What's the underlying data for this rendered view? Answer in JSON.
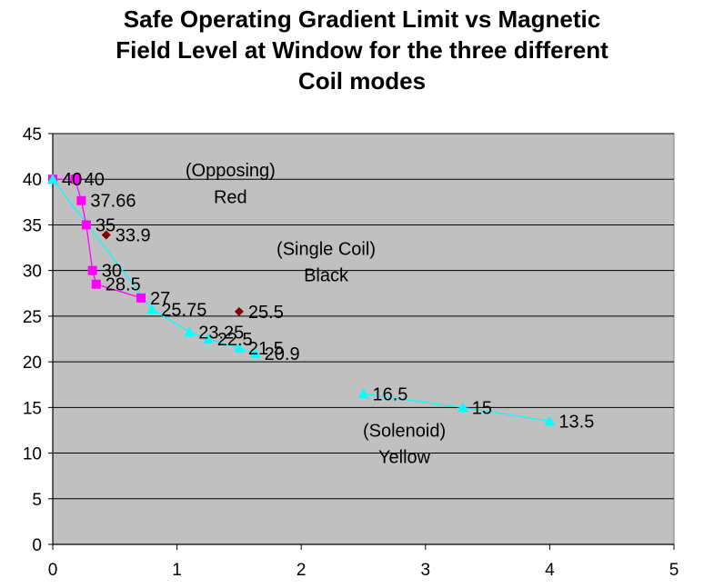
{
  "chart_data": {
    "type": "scatter",
    "title_lines": [
      "Safe Operating Gradient Limit vs  Magnetic",
      "Field Level at Window for the three different",
      "Coil modes"
    ],
    "xlabel": "",
    "ylabel": "",
    "xlim": [
      0,
      5
    ],
    "ylim": [
      0,
      45
    ],
    "x_ticks": [
      0,
      1,
      2,
      3,
      4,
      5
    ],
    "y_ticks": [
      0,
      5,
      10,
      15,
      20,
      25,
      30,
      35,
      40,
      45
    ],
    "grid": "horizontal",
    "plot_background": "#c0c0c0",
    "legend": "none",
    "series": [
      {
        "marker": "square",
        "color": "#ff00ff",
        "connected": true,
        "points": [
          {
            "x": 0.0,
            "y": 40,
            "label": "40"
          },
          {
            "x": 0.18,
            "y": 40,
            "label": "40"
          },
          {
            "x": 0.23,
            "y": 37.66,
            "label": "37.66"
          },
          {
            "x": 0.27,
            "y": 35,
            "label": "35"
          },
          {
            "x": 0.32,
            "y": 30,
            "label": "30"
          },
          {
            "x": 0.35,
            "y": 28.5,
            "label": "28.5"
          },
          {
            "x": 0.71,
            "y": 27,
            "label": "27"
          }
        ]
      },
      {
        "marker": "diamond",
        "color": "#7f0000",
        "connected": false,
        "points": [
          {
            "x": 0.43,
            "y": 33.9,
            "label": "33.9"
          },
          {
            "x": 1.5,
            "y": 25.5,
            "label": "25.5"
          }
        ]
      },
      {
        "marker": "triangle",
        "color": "#00ffff",
        "connected": true,
        "points": [
          {
            "x": 0.0,
            "y": 40,
            "label": "40"
          },
          {
            "x": 0.8,
            "y": 25.75,
            "label": "25.75"
          },
          {
            "x": 1.1,
            "y": 23.25,
            "label": "23.25"
          },
          {
            "x": 1.25,
            "y": 22.5,
            "label": "22.5"
          },
          {
            "x": 1.5,
            "y": 21.5,
            "label": "21.5"
          },
          {
            "x": 1.63,
            "y": 20.9,
            "label": "20.9"
          }
        ]
      },
      {
        "marker": "triangle",
        "color": "#00ffff",
        "connected": true,
        "points": [
          {
            "x": 2.5,
            "y": 16.5,
            "label": "16.5"
          },
          {
            "x": 3.3,
            "y": 15,
            "label": "15"
          },
          {
            "x": 4.0,
            "y": 13.5,
            "label": "13.5"
          }
        ]
      }
    ],
    "annotations": [
      {
        "text": "(Opposing)",
        "x": 1.43,
        "y": 41.0
      },
      {
        "text": "Red",
        "x": 1.43,
        "y": 38.1
      },
      {
        "text": "(Single Coil)",
        "x": 2.2,
        "y": 32.4
      },
      {
        "text": "Black",
        "x": 2.2,
        "y": 29.5
      },
      {
        "text": "(Solenoid)",
        "x": 2.83,
        "y": 12.5
      },
      {
        "text": "Yellow",
        "x": 2.83,
        "y": 9.6
      }
    ]
  }
}
